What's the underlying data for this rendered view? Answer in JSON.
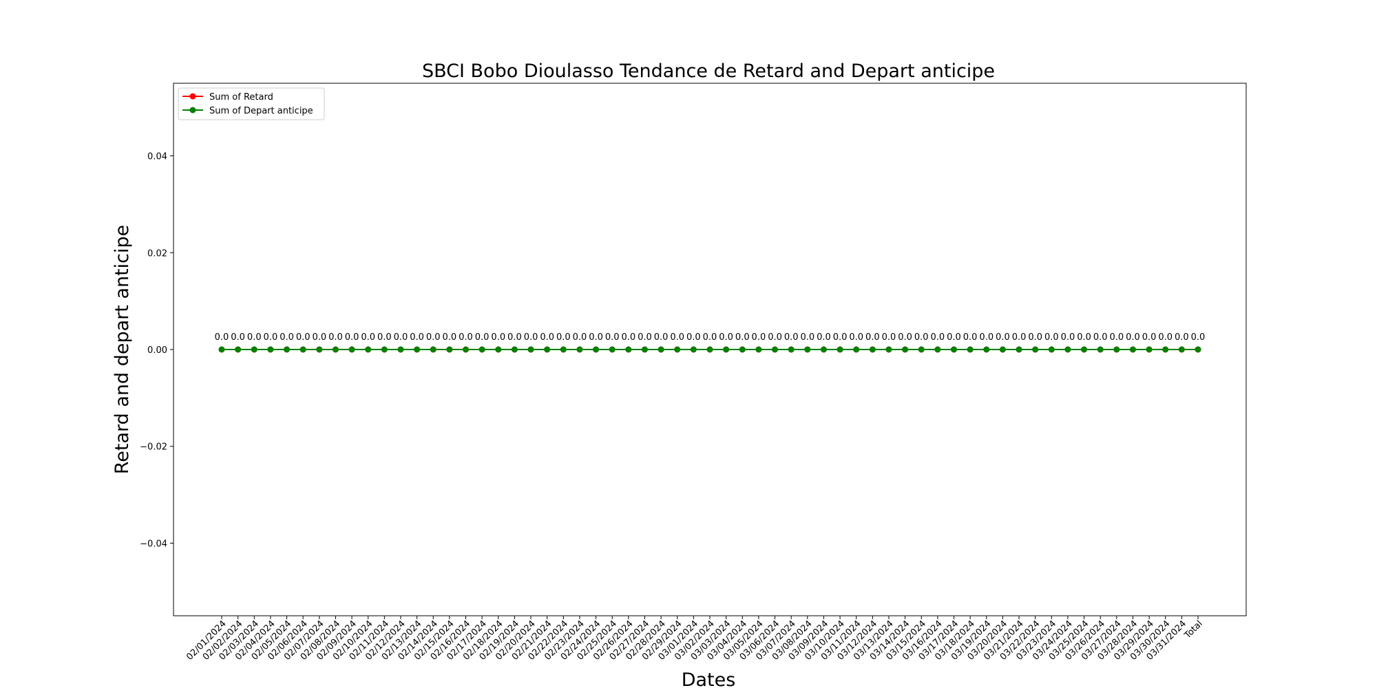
{
  "chart_data": {
    "type": "line",
    "title": "SBCI Bobo Dioulasso Tendance de Retard and Depart anticipe",
    "xlabel": "Dates",
    "ylabel": "Retard and depart anticipe",
    "ylim": [
      -0.055,
      0.055
    ],
    "yticks": [
      -0.04,
      -0.02,
      0.0,
      0.02,
      0.04
    ],
    "ytick_labels": [
      "−0.04",
      "−0.02",
      "0.00",
      "0.02",
      "0.04"
    ],
    "grid": false,
    "legend_position": "top-left",
    "categories": [
      "02/01/2024",
      "02/02/2024",
      "02/03/2024",
      "02/04/2024",
      "02/05/2024",
      "02/06/2024",
      "02/07/2024",
      "02/08/2024",
      "02/09/2024",
      "02/10/2024",
      "02/11/2024",
      "02/12/2024",
      "02/13/2024",
      "02/14/2024",
      "02/15/2024",
      "02/16/2024",
      "02/17/2024",
      "02/18/2024",
      "02/19/2024",
      "02/20/2024",
      "02/21/2024",
      "02/22/2024",
      "02/23/2024",
      "02/24/2024",
      "02/25/2024",
      "02/26/2024",
      "02/27/2024",
      "02/28/2024",
      "02/29/2024",
      "03/01/2024",
      "03/02/2024",
      "03/03/2024",
      "03/04/2024",
      "03/05/2024",
      "03/06/2024",
      "03/07/2024",
      "03/08/2024",
      "03/09/2024",
      "03/10/2024",
      "03/11/2024",
      "03/12/2024",
      "03/13/2024",
      "03/14/2024",
      "03/15/2024",
      "03/16/2024",
      "03/17/2024",
      "03/18/2024",
      "03/19/2024",
      "03/20/2024",
      "03/21/2024",
      "03/22/2024",
      "03/23/2024",
      "03/24/2024",
      "03/25/2024",
      "03/26/2024",
      "03/27/2024",
      "03/28/2024",
      "03/29/2024",
      "03/30/2024",
      "03/31/2024",
      "Total"
    ],
    "data_label": "0.0",
    "series": [
      {
        "name": "Sum of Retard",
        "color": "#ff0000",
        "values": [
          0,
          0,
          0,
          0,
          0,
          0,
          0,
          0,
          0,
          0,
          0,
          0,
          0,
          0,
          0,
          0,
          0,
          0,
          0,
          0,
          0,
          0,
          0,
          0,
          0,
          0,
          0,
          0,
          0,
          0,
          0,
          0,
          0,
          0,
          0,
          0,
          0,
          0,
          0,
          0,
          0,
          0,
          0,
          0,
          0,
          0,
          0,
          0,
          0,
          0,
          0,
          0,
          0,
          0,
          0,
          0,
          0,
          0,
          0,
          0,
          0
        ]
      },
      {
        "name": "Sum of Depart anticipe",
        "color": "#008000",
        "values": [
          0,
          0,
          0,
          0,
          0,
          0,
          0,
          0,
          0,
          0,
          0,
          0,
          0,
          0,
          0,
          0,
          0,
          0,
          0,
          0,
          0,
          0,
          0,
          0,
          0,
          0,
          0,
          0,
          0,
          0,
          0,
          0,
          0,
          0,
          0,
          0,
          0,
          0,
          0,
          0,
          0,
          0,
          0,
          0,
          0,
          0,
          0,
          0,
          0,
          0,
          0,
          0,
          0,
          0,
          0,
          0,
          0,
          0,
          0,
          0,
          0
        ]
      }
    ]
  }
}
